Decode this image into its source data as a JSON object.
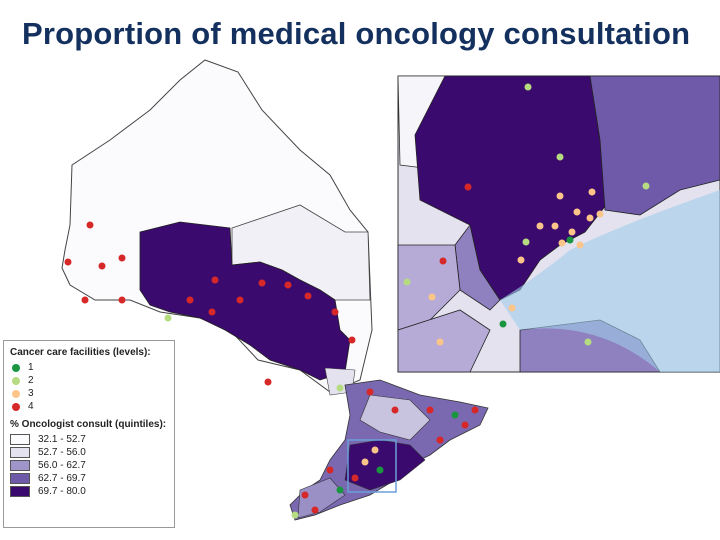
{
  "title": "Proportion of medical oncology consultation",
  "legend": {
    "facilities": {
      "title": "Cancer care facilities (levels):",
      "items": [
        {
          "label": "1",
          "color": "#1a9641"
        },
        {
          "label": "2",
          "color": "#b5dc80"
        },
        {
          "label": "3",
          "color": "#fbc58a"
        },
        {
          "label": "4",
          "color": "#d62828"
        }
      ]
    },
    "quintiles": {
      "title": "% Oncologist consult (quintiles):",
      "items": [
        {
          "label": "32.1 - 52.7",
          "color": "#fbfbfd"
        },
        {
          "label": "52.7 - 56.0",
          "color": "#e4e2ef"
        },
        {
          "label": "56.0 - 62.7",
          "color": "#9f95c8"
        },
        {
          "label": "62.7 - 69.7",
          "color": "#6e5aa8"
        },
        {
          "label": "69.7 - 80.0",
          "color": "#3b0a6e"
        }
      ]
    }
  }
}
